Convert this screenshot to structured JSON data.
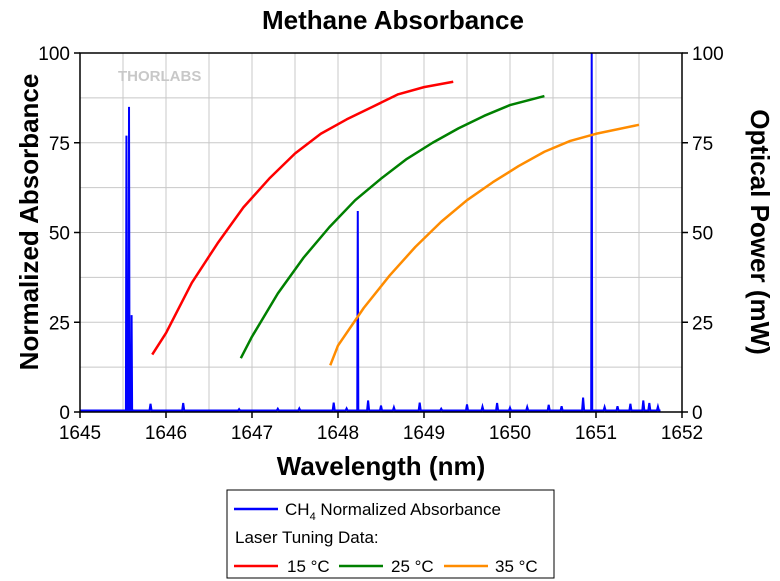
{
  "chart_data": {
    "type": "line",
    "title": "Methane Absorbance",
    "xlabel": "Wavelength (nm)",
    "ylabel_left": "Normalized Absorbance",
    "ylabel_right": "Optical Power (mW)",
    "xlim": [
      1645,
      1652
    ],
    "ylim_left": [
      0,
      100
    ],
    "ylim_right": [
      0,
      100
    ],
    "x_ticks": [
      "1645",
      "1646",
      "1647",
      "1648",
      "1649",
      "1650",
      "1651",
      "1652"
    ],
    "y_ticks_left": [
      "0",
      "25",
      "50",
      "75",
      "100"
    ],
    "y_ticks_right": [
      "0",
      "25",
      "50",
      "75",
      "100"
    ],
    "grid": true,
    "watermark": "THORLABS",
    "legend": {
      "placement": "bottom",
      "absorbance_label_prefix": "CH",
      "absorbance_label_sub": "4",
      "absorbance_label_suffix": " Normalized Absorbance",
      "tuning_heading": "Laser Tuning Data:"
    },
    "absorbance": {
      "color": "#0000ff",
      "baseline_noise": [
        [
          1645.6,
          1.2
        ],
        [
          1645.82,
          2.3
        ],
        [
          1646.2,
          2.5
        ],
        [
          1646.85,
          0.8
        ],
        [
          1647.3,
          0.9
        ],
        [
          1647.55,
          1.0
        ],
        [
          1647.95,
          2.6
        ],
        [
          1648.1,
          1.0
        ],
        [
          1648.35,
          3.2
        ],
        [
          1648.5,
          1.8
        ],
        [
          1648.65,
          1.3
        ],
        [
          1648.95,
          2.6
        ],
        [
          1649.2,
          0.9
        ],
        [
          1649.5,
          2.1
        ],
        [
          1649.68,
          1.5
        ],
        [
          1649.85,
          2.5
        ],
        [
          1650.0,
          1.2
        ],
        [
          1650.2,
          1.4
        ],
        [
          1650.45,
          2.0
        ],
        [
          1650.6,
          1.6
        ],
        [
          1650.85,
          4.0
        ],
        [
          1651.1,
          1.4
        ],
        [
          1651.25,
          1.6
        ],
        [
          1651.4,
          2.3
        ],
        [
          1651.55,
          3.2
        ],
        [
          1651.62,
          2.5
        ],
        [
          1651.72,
          1.5
        ]
      ],
      "peaks": [
        {
          "x": 1645.57,
          "y": 85
        },
        {
          "x": 1645.54,
          "y": 77
        },
        {
          "x": 1645.6,
          "y": 27
        },
        {
          "x": 1648.23,
          "y": 56
        },
        {
          "x": 1650.95,
          "y": 100
        }
      ]
    },
    "series": [
      {
        "name": "15 °C",
        "color": "#ff0000",
        "x": [
          1645.84,
          1646.0,
          1646.3,
          1646.6,
          1646.9,
          1647.2,
          1647.5,
          1647.8,
          1648.1,
          1648.4,
          1648.7,
          1649.0,
          1649.34
        ],
        "y": [
          16,
          22,
          36,
          47,
          57,
          65,
          72,
          77.5,
          81.5,
          85,
          88.5,
          90.5,
          92
        ]
      },
      {
        "name": "25 °C",
        "color": "#008000",
        "x": [
          1646.87,
          1647.0,
          1647.3,
          1647.6,
          1647.9,
          1648.2,
          1648.5,
          1648.8,
          1649.1,
          1649.4,
          1649.7,
          1650.0,
          1650.4
        ],
        "y": [
          15,
          21,
          33,
          43,
          51.5,
          59,
          65,
          70.5,
          75,
          79,
          82.5,
          85.5,
          88
        ]
      },
      {
        "name": "35 °C",
        "color": "#ff8c00",
        "x": [
          1647.91,
          1648.0,
          1648.3,
          1648.6,
          1648.9,
          1649.2,
          1649.5,
          1649.8,
          1650.1,
          1650.4,
          1650.7,
          1651.0,
          1651.5
        ],
        "y": [
          13,
          18.5,
          29,
          38,
          46,
          53,
          59,
          64,
          68.5,
          72.5,
          75.5,
          77.5,
          80
        ]
      }
    ]
  }
}
